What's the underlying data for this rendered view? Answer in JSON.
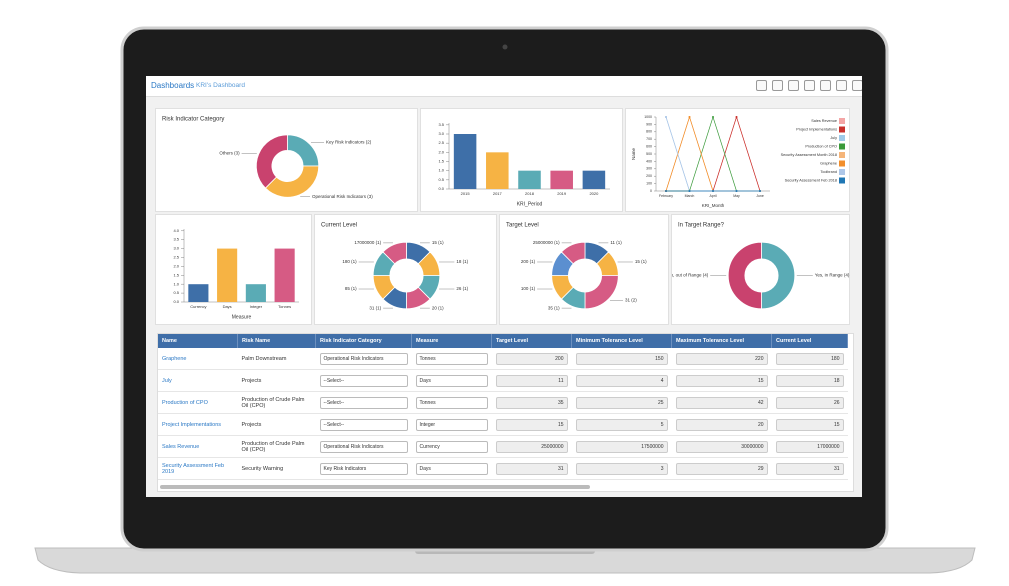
{
  "header": {
    "title": "Dashboards",
    "subtitle": "KRI's Dashboard"
  },
  "chart_data": [
    {
      "type": "pie",
      "title": "Risk Indicator Category",
      "categories": [
        "Key Risk Indicators (2)",
        "Operational Risk Indicators (3)",
        "Others (3)"
      ],
      "values": [
        2,
        3,
        3
      ],
      "colors": [
        "#5aabb5",
        "#f6b344",
        "#c9426e"
      ]
    },
    {
      "type": "bar",
      "x_label": "KRI_Period",
      "categories": [
        "2015",
        "2017",
        "2018",
        "2019",
        "2020"
      ],
      "values": [
        3,
        2,
        1,
        1,
        1
      ],
      "colors": [
        "#3e6fa8",
        "#f6b344",
        "#5aabb5",
        "#d65b84",
        "#3e6fa8"
      ],
      "ylim": [
        0,
        3.6
      ],
      "yticks": [
        {
          "value": 0,
          "label": "0.0"
        },
        0.5,
        {
          "value": 1,
          "label": "1.0"
        },
        1.5,
        {
          "value": 2,
          "label": "2.0"
        },
        2.5,
        {
          "value": 3,
          "label": "3.0"
        },
        3.5
      ]
    },
    {
      "type": "line",
      "x_label": "KRI_Month",
      "y_label": "Name",
      "categories": [
        "February",
        "March",
        "April",
        "May",
        "June"
      ],
      "ylim": [
        0,
        1000
      ],
      "yticks": [
        0,
        100,
        200,
        300,
        400,
        500,
        600,
        700,
        800,
        900,
        1000
      ],
      "series": [
        {
          "name": "Sales Revenue",
          "color": "#f4a6a6",
          "values": [
            0,
            0,
            0,
            1000,
            0
          ]
        },
        {
          "name": "Project Implementations",
          "color": "#c9302c",
          "values": [
            0,
            0,
            0,
            1000,
            0
          ]
        },
        {
          "name": "July",
          "color": "#9ecae9",
          "values": [
            1000,
            0,
            0,
            0,
            0
          ]
        },
        {
          "name": "Production of CPO",
          "color": "#3a9a3a",
          "values": [
            0,
            0,
            1000,
            0,
            0
          ]
        },
        {
          "name": "Security Assessment Month 2018",
          "color": "#f5b57a",
          "values": [
            0,
            1000,
            0,
            0,
            0
          ]
        },
        {
          "name": "Graphene",
          "color": "#f28e2b",
          "values": [
            0,
            1000,
            0,
            0,
            0
          ]
        },
        {
          "name": "Toolbrand",
          "color": "#aec7e8",
          "values": [
            1000,
            0,
            0,
            0,
            0
          ]
        },
        {
          "name": "Security Assessment Feb 2018",
          "color": "#1f77b4",
          "values": [
            0,
            0,
            0,
            0,
            0
          ]
        }
      ]
    },
    {
      "type": "bar",
      "x_label": "Measure",
      "categories": [
        "Currency",
        "Days",
        "Integer",
        "Tonnes"
      ],
      "values": [
        1,
        3,
        1,
        3
      ],
      "colors": [
        "#3e6fa8",
        "#f6b344",
        "#5aabb5",
        "#d65b84"
      ],
      "ylim": [
        0,
        4.1
      ],
      "yticks": [
        {
          "value": 0,
          "label": "0.0"
        },
        0.5,
        {
          "value": 1,
          "label": "1.0"
        },
        1.5,
        {
          "value": 2,
          "label": "2.0"
        },
        2.5,
        {
          "value": 3,
          "label": "3.0"
        },
        3.5,
        {
          "value": 4,
          "label": "4.0"
        }
      ]
    },
    {
      "type": "pie",
      "title": "Current Level",
      "categories": [
        "15 (1)",
        "18 (1)",
        "26 (1)",
        "20 (1)",
        "31 (1)",
        "85 (1)",
        "180 (1)",
        "17000000 (1)"
      ],
      "values": [
        1,
        1,
        1,
        1,
        1,
        1,
        1,
        1
      ],
      "colors": [
        "#3e6fa8",
        "#f6b344",
        "#5aabb5",
        "#d65b84",
        "#3e6fa8",
        "#f6b344",
        "#5aabb5",
        "#d65b84"
      ]
    },
    {
      "type": "pie",
      "title": "Target Level",
      "categories": [
        "11 (1)",
        "15 (1)",
        "31 (2)",
        "35 (1)",
        "100 (1)",
        "200 (1)",
        "25000000 (1)"
      ],
      "values": [
        1,
        1,
        2,
        1,
        1,
        1,
        1
      ],
      "colors": [
        "#3e6fa8",
        "#f6b344",
        "#d65b84",
        "#5aabb5",
        "#f6b344",
        "#5b8fd0",
        "#d65b84"
      ]
    },
    {
      "type": "pie",
      "title": "In Target Range?",
      "categories": [
        "Yes, in Range (4)",
        "No, out of Range (4)"
      ],
      "values": [
        4,
        4
      ],
      "colors": [
        "#5aabb5",
        "#c9426e"
      ]
    }
  ],
  "table": {
    "columns": [
      "Name",
      "Risk Name",
      "Risk Indicator Category",
      "Measure",
      "Target Level",
      "Minimum Tolerance Level",
      "Maximum Tolerance Level",
      "Current Level"
    ],
    "rows": [
      [
        "Graphene",
        "Palm Downstream",
        "Operational Risk Indicators",
        "Tonnes",
        "200",
        "150",
        "220",
        "180"
      ],
      [
        "July",
        "Projects",
        "--Select--",
        "Days",
        "11",
        "4",
        "15",
        "18"
      ],
      [
        "Production of CPO",
        "Production of Crude Palm Oil (CPO)",
        "--Select--",
        "Tonnes",
        "35",
        "25",
        "42",
        "26"
      ],
      [
        "Project Implementations",
        "Projects",
        "--Select--",
        "Integer",
        "15",
        "5",
        "20",
        "15"
      ],
      [
        "Sales Revenue",
        "Production of Crude Palm Oil (CPO)",
        "Operational Risk Indicators",
        "Currency",
        "25000000",
        "17500000",
        "30000000",
        "17000000"
      ],
      [
        "Security Assessment Feb 2019",
        "Security Warning",
        "Key Risk Indicators",
        "Days",
        "31",
        "3",
        "29",
        "31"
      ]
    ]
  }
}
